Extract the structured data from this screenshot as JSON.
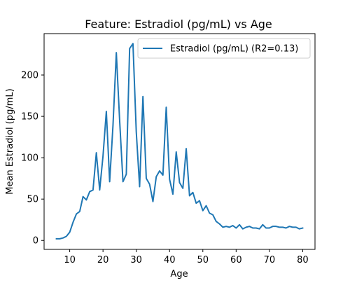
{
  "chart_data": {
    "type": "line",
    "title": "Feature: Estradiol (pg/mL) vs Age",
    "xlabel": "Age",
    "ylabel": "Mean Estradiol (pg/mL)",
    "xlim": [
      2.3,
      83.7
    ],
    "ylim": [
      -10.8,
      250
    ],
    "xticks": [
      10,
      20,
      30,
      40,
      50,
      60,
      70,
      80
    ],
    "yticks": [
      0,
      50,
      100,
      150,
      200
    ],
    "grid": false,
    "legend_position": "top-right",
    "series": [
      {
        "name": "Estradiol (pg/mL) (R2=0.13)",
        "color": "#1f77b4",
        "x": [
          6,
          7,
          8,
          9,
          10,
          11,
          12,
          13,
          14,
          15,
          16,
          17,
          18,
          19,
          20,
          21,
          22,
          23,
          24,
          25,
          26,
          27,
          28,
          29,
          30,
          31,
          32,
          33,
          34,
          35,
          36,
          37,
          38,
          39,
          40,
          41,
          42,
          43,
          44,
          45,
          46,
          47,
          48,
          49,
          50,
          51,
          52,
          53,
          54,
          55,
          56,
          57,
          58,
          59,
          60,
          61,
          62,
          63,
          64,
          65,
          66,
          67,
          68,
          69,
          70,
          71,
          72,
          73,
          74,
          75,
          76,
          77,
          78,
          79,
          80
        ],
        "y": [
          2,
          2,
          3,
          5,
          10,
          22,
          32,
          35,
          53,
          49,
          59,
          61,
          106,
          61,
          102,
          156,
          71,
          139,
          227,
          145,
          71,
          80,
          232,
          238,
          131,
          65,
          174,
          75,
          68,
          47,
          77,
          84,
          79,
          161,
          74,
          56,
          107,
          70,
          63,
          111,
          54,
          58,
          45,
          48,
          36,
          42,
          33,
          31,
          23,
          20,
          16,
          17,
          16,
          18,
          15,
          19,
          14,
          16,
          17,
          15,
          15,
          14,
          19,
          15,
          15,
          17,
          17,
          16,
          16,
          15,
          17,
          16,
          16,
          14,
          15
        ]
      }
    ]
  }
}
